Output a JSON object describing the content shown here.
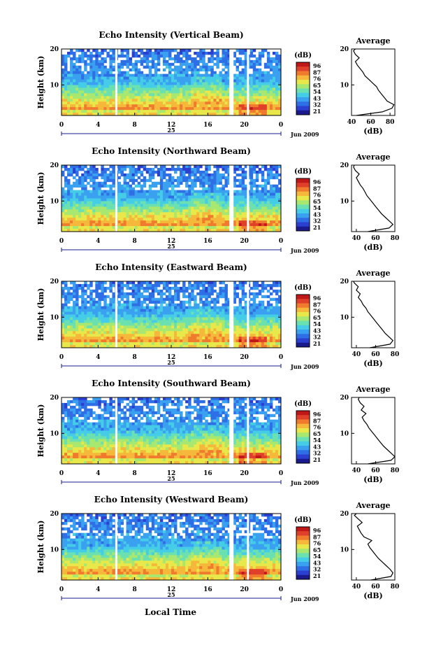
{
  "figure": {
    "xlabel_bottom": "Local Time",
    "colorbar_unit": "(dB)",
    "colorbar_ticks": [
      "96",
      "87",
      "76",
      "65",
      "54",
      "43",
      "32",
      "21"
    ],
    "colors": [
      "#1a1a8c",
      "#2b3fd1",
      "#2f6fe6",
      "#3aa0f0",
      "#45cde8",
      "#6be0b0",
      "#a8e870",
      "#e8e84a",
      "#f5b83a",
      "#f07a2e",
      "#e0402a",
      "#c01818"
    ]
  },
  "chart_data": [
    {
      "type": "heatmap",
      "title": "Echo Intensity (Vertical Beam)",
      "ylabel": "Height (km)",
      "xticks": [
        "0",
        "4",
        "8",
        "12",
        "16",
        "20",
        "0"
      ],
      "date_label": "25",
      "month_label": "Jun 2009",
      "yticks": [
        "20",
        "10"
      ],
      "ylim": [
        1.5,
        20
      ],
      "profile": {
        "title": "Average",
        "xlabel": "(dB)",
        "xticks": [
          "40",
          "60",
          "80"
        ],
        "xlim": [
          40,
          85
        ],
        "yticks": [
          "20",
          "10"
        ],
        "heights": [
          1.5,
          2.5,
          3.5,
          4.5,
          5.5,
          6.5,
          7.5,
          8.5,
          9.5,
          10.5,
          11.5,
          12.5,
          13.5,
          14.5,
          15.5,
          16.5,
          17.5,
          18.5,
          19.5,
          20
        ],
        "values": [
          45,
          72,
          82,
          84,
          77,
          74,
          71,
          68,
          66,
          62,
          58,
          54,
          52,
          49,
          46,
          44,
          48,
          44,
          42,
          44
        ]
      }
    },
    {
      "type": "heatmap",
      "title": "Echo Intensity (Northward Beam)",
      "ylabel": "Height (km)",
      "xticks": [
        "0",
        "4",
        "8",
        "12",
        "16",
        "20",
        "0"
      ],
      "date_label": "25",
      "month_label": "Jun 2009",
      "yticks": [
        "20",
        "10"
      ],
      "ylim": [
        1.5,
        20
      ],
      "profile": {
        "title": "Average",
        "xlabel": "(dB)",
        "xticks": [
          "40",
          "60",
          "80"
        ],
        "xlim": [
          35,
          80
        ],
        "yticks": [
          "20",
          "10"
        ],
        "heights": [
          1.5,
          2.5,
          3.5,
          4.5,
          5.5,
          6.5,
          7.5,
          8.5,
          9.5,
          10.5,
          11.5,
          12.5,
          13.5,
          14.5,
          15.5,
          16.5,
          17.5,
          18.5,
          19.5,
          20
        ],
        "values": [
          52,
          74,
          78,
          74,
          70,
          66,
          63,
          60,
          57,
          54,
          51,
          49,
          47,
          44,
          42,
          40,
          43,
          39,
          37,
          38
        ]
      }
    },
    {
      "type": "heatmap",
      "title": "Echo Intensity (Eastward Beam)",
      "ylabel": "Height (km)",
      "xticks": [
        "0",
        "4",
        "8",
        "12",
        "16",
        "20",
        "0"
      ],
      "date_label": "25",
      "month_label": "Jun 2009",
      "yticks": [
        "20",
        "10"
      ],
      "ylim": [
        1.5,
        20
      ],
      "profile": {
        "title": "Average",
        "xlabel": "(dB)",
        "xticks": [
          "40",
          "60",
          "80"
        ],
        "xlim": [
          35,
          80
        ],
        "yticks": [
          "20",
          "10"
        ],
        "heights": [
          1.5,
          2.5,
          3.5,
          4.5,
          5.5,
          6.5,
          7.5,
          8.5,
          9.5,
          10.5,
          11.5,
          12.5,
          13.5,
          14.5,
          15.5,
          16.5,
          17.5,
          18.5,
          19.5,
          20
        ],
        "values": [
          54,
          75,
          78,
          74,
          70,
          67,
          64,
          61,
          58,
          55,
          52,
          50,
          47,
          45,
          42,
          44,
          40,
          42,
          38,
          37
        ]
      }
    },
    {
      "type": "heatmap",
      "title": "Echo Intensity (Southward Beam)",
      "ylabel": "Height (km)",
      "xticks": [
        "0",
        "4",
        "8",
        "12",
        "16",
        "20",
        "0"
      ],
      "date_label": "25",
      "month_label": "Jun 2009",
      "yticks": [
        "20",
        "10"
      ],
      "ylim": [
        1.5,
        20
      ],
      "profile": {
        "title": "Average",
        "xlabel": "(dB)",
        "xticks": [
          "40",
          "60",
          "80"
        ],
        "xlim": [
          35,
          80
        ],
        "yticks": [
          "20",
          "10"
        ],
        "heights": [
          1.5,
          2.5,
          3.5,
          4.5,
          5.5,
          6.5,
          7.5,
          8.5,
          9.5,
          10.5,
          11.5,
          12.5,
          13.5,
          14.5,
          15.5,
          16.5,
          17.5,
          18.5,
          19.5,
          20
        ],
        "values": [
          52,
          76,
          80,
          76,
          72,
          68,
          65,
          62,
          59,
          56,
          53,
          51,
          48,
          46,
          50,
          45,
          48,
          44,
          42,
          43
        ]
      }
    },
    {
      "type": "heatmap",
      "title": "Echo Intensity (Westward Beam)",
      "ylabel": "Height (km)",
      "xticks": [
        "0",
        "4",
        "8",
        "12",
        "16",
        "20",
        "0"
      ],
      "date_label": "25",
      "month_label": "Jun 2009",
      "yticks": [
        "20",
        "10"
      ],
      "ylim": [
        1.5,
        20
      ],
      "profile": {
        "title": "Average",
        "xlabel": "(dB)",
        "xticks": [
          "40",
          "60",
          "80"
        ],
        "xlim": [
          35,
          80
        ],
        "yticks": [
          "20",
          "10"
        ],
        "heights": [
          1.5,
          2.5,
          3.5,
          4.5,
          5.5,
          6.5,
          7.5,
          8.5,
          9.5,
          10.5,
          11.5,
          12.5,
          13.5,
          14.5,
          15.5,
          16.5,
          17.5,
          18.5,
          19.5,
          20
        ],
        "values": [
          55,
          76,
          78,
          75,
          71,
          67,
          63,
          60,
          57,
          54,
          52,
          56,
          48,
          45,
          43,
          41,
          46,
          42,
          38,
          40
        ]
      }
    }
  ]
}
